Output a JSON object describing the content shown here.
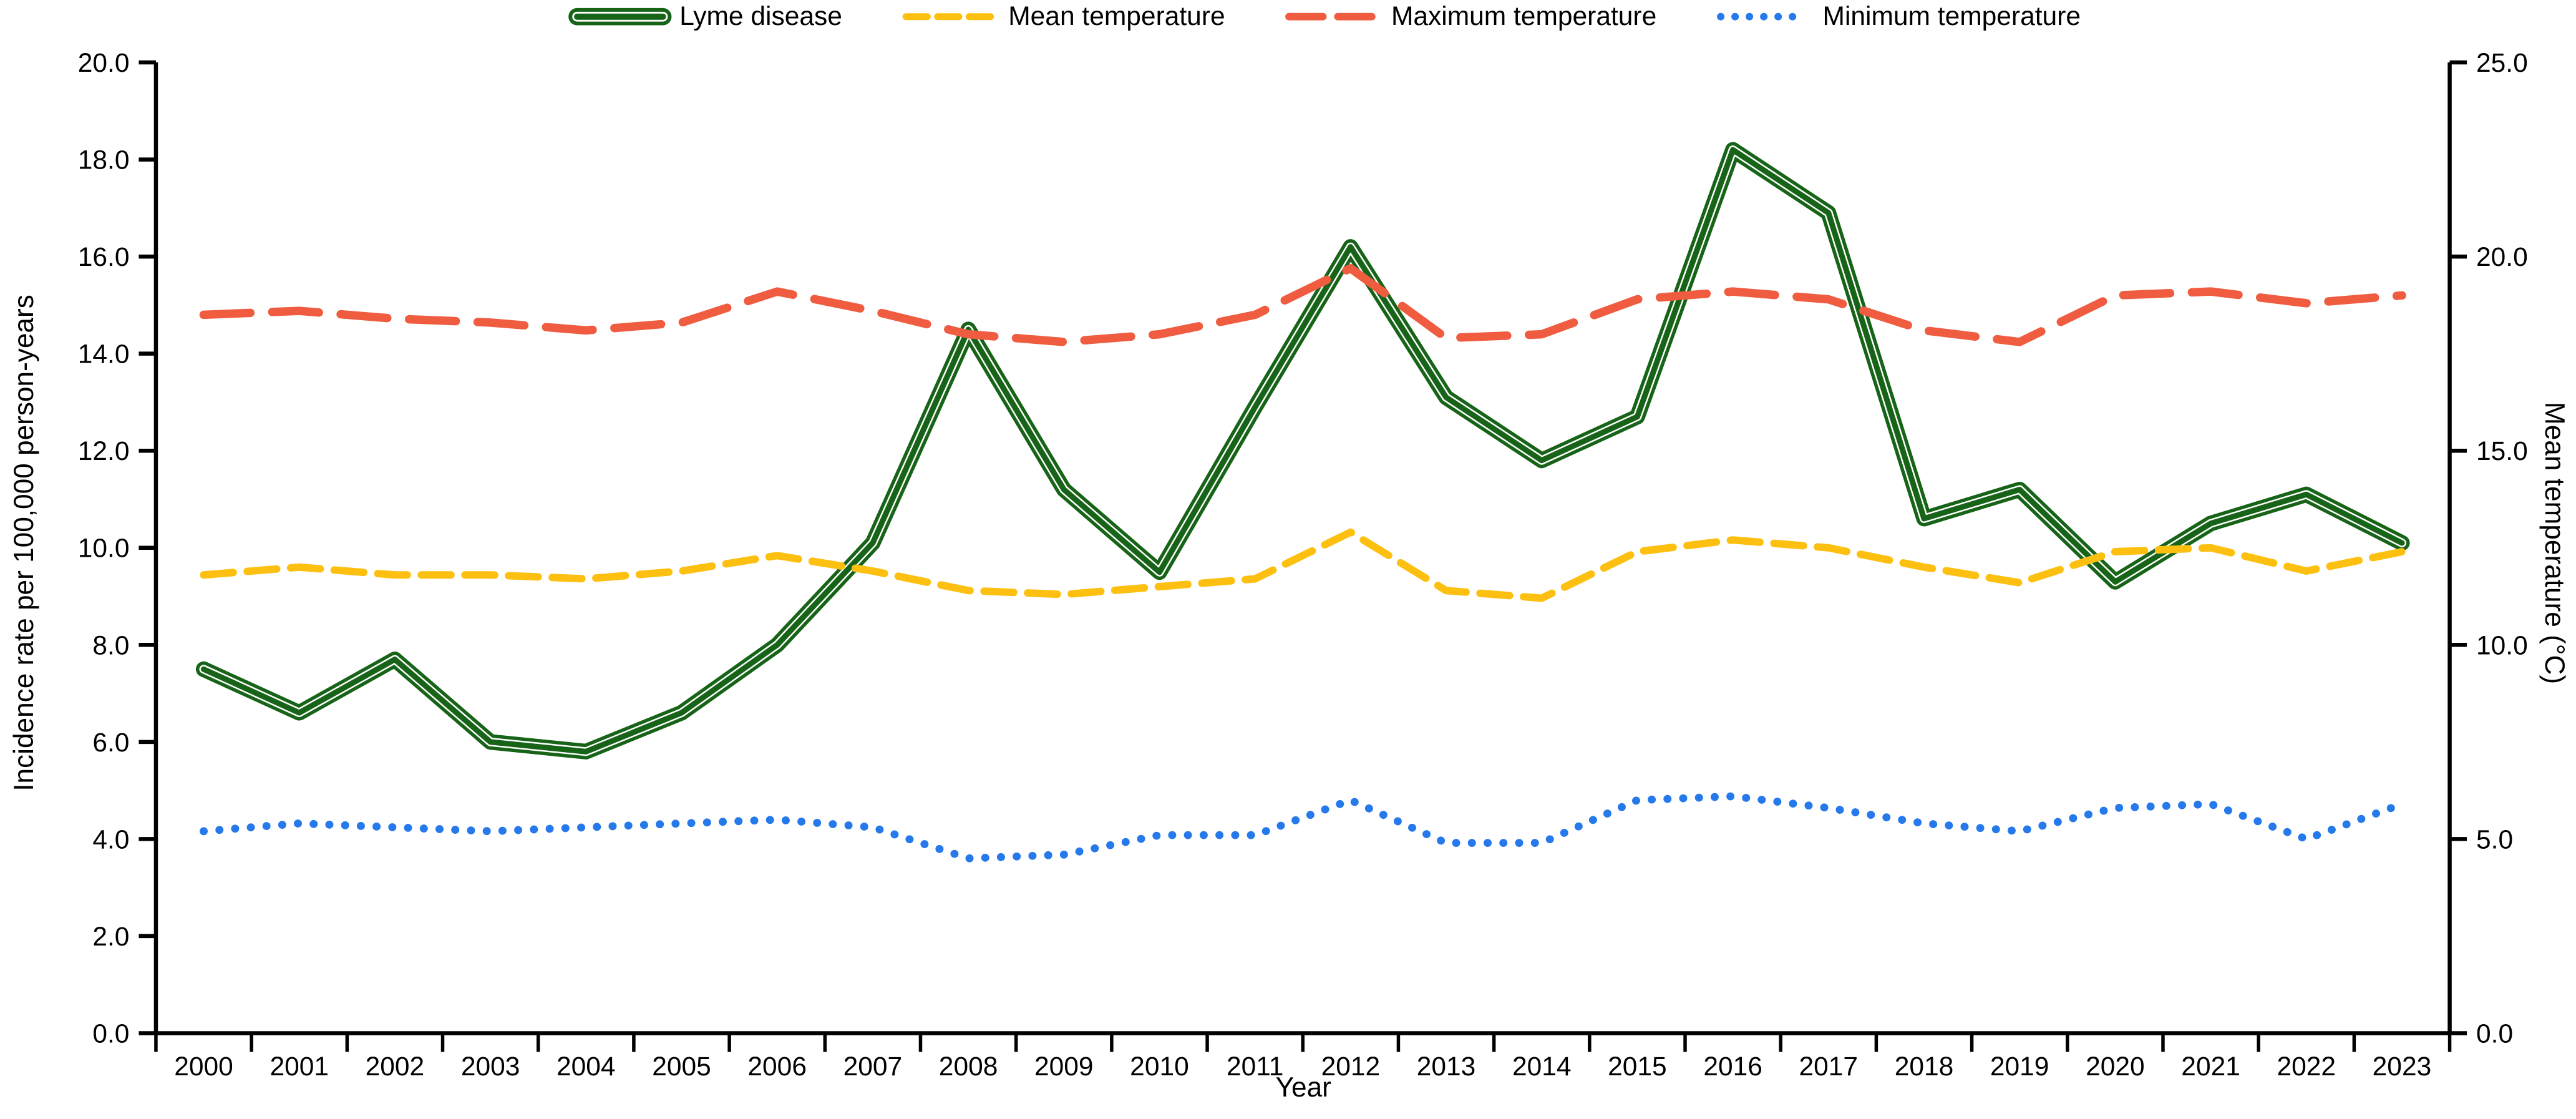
{
  "chart_data": {
    "type": "line",
    "title": "",
    "xlabel": "Year",
    "x": [
      "2000",
      "2001",
      "2002",
      "2003",
      "2004",
      "2005",
      "2006",
      "2007",
      "2008",
      "2009",
      "2010",
      "2011",
      "2012",
      "2013",
      "2014",
      "2015",
      "2016",
      "2017",
      "2018",
      "2019",
      "2020",
      "2021",
      "2022",
      "2023"
    ],
    "y_left": {
      "label": "Incidence rate per 100,000 person-years",
      "range": [
        0,
        20
      ],
      "tick_labels": [
        "0.0",
        "2.0",
        "4.0",
        "6.0",
        "8.0",
        "10.0",
        "12.0",
        "14.0",
        "16.0",
        "18.0",
        "20.0"
      ]
    },
    "y_right": {
      "label": "Mean temperature (°C)",
      "range": [
        0,
        25
      ],
      "tick_labels": [
        "0.0",
        "5.0",
        "10.0",
        "15.0",
        "20.0",
        "25.0"
      ]
    },
    "grid": false,
    "legend_position": "top",
    "series": [
      {
        "name": "Lyme disease",
        "axis": "left",
        "style": "striped-solid",
        "color": "#176418",
        "values": [
          7.5,
          6.6,
          7.7,
          6.0,
          5.8,
          6.6,
          8.0,
          10.1,
          14.5,
          11.2,
          9.5,
          12.9,
          16.2,
          13.1,
          11.8,
          12.7,
          18.2,
          16.9,
          10.6,
          11.2,
          9.3,
          10.5,
          11.1,
          10.1
        ]
      },
      {
        "name": "Mean temperature",
        "axis": "right",
        "style": "dashed",
        "color": "#FDC010",
        "values": [
          11.8,
          12.0,
          11.8,
          11.8,
          11.7,
          11.9,
          12.3,
          11.9,
          11.4,
          11.3,
          11.5,
          11.7,
          12.9,
          11.4,
          11.2,
          12.4,
          12.7,
          12.5,
          12.0,
          11.6,
          12.4,
          12.5,
          11.9,
          12.4
        ]
      },
      {
        "name": "Maximum temperature",
        "axis": "right",
        "style": "long-dashed",
        "color": "#EF5C40",
        "values": [
          18.5,
          18.6,
          18.4,
          18.3,
          18.1,
          18.3,
          19.1,
          18.6,
          18.0,
          17.8,
          18.0,
          18.5,
          19.7,
          17.9,
          18.0,
          18.9,
          19.1,
          18.9,
          18.1,
          17.8,
          19.0,
          19.1,
          18.8,
          19.0
        ]
      },
      {
        "name": "Minimum temperature",
        "axis": "right",
        "style": "dotted",
        "color": "#2579EA",
        "values": [
          5.2,
          5.4,
          5.3,
          5.2,
          5.3,
          5.4,
          5.5,
          5.3,
          4.5,
          4.6,
          5.1,
          5.1,
          6.0,
          4.9,
          4.9,
          6.0,
          6.1,
          5.8,
          5.4,
          5.2,
          5.8,
          5.9,
          5.0,
          5.9
        ]
      }
    ]
  }
}
